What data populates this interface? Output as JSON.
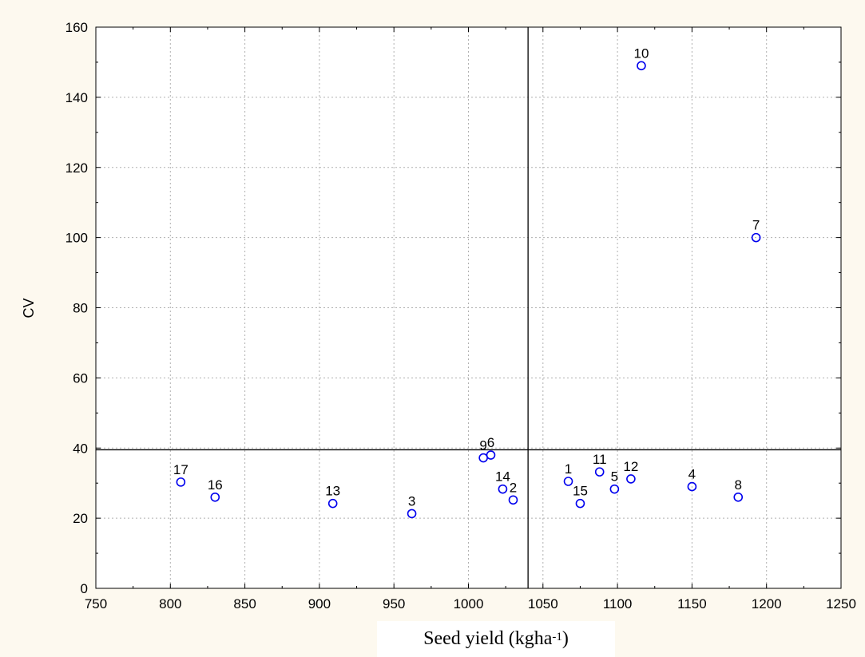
{
  "colors": {
    "figure_background": "#fdf9ef",
    "plot_background": "#ffffff",
    "marker": "#0000ee",
    "grid": "#b0b0b0",
    "reference_lines": "#000000"
  },
  "chart_data": {
    "type": "scatter",
    "title": "",
    "xlabel": {
      "main": "Seed yield (kgha",
      "superscript": "-1",
      "close": ")"
    },
    "ylabel": "CV",
    "xlim": [
      750,
      1250
    ],
    "ylim": [
      0,
      160
    ],
    "x_ticks": [
      750,
      800,
      850,
      900,
      950,
      1000,
      1050,
      1100,
      1150,
      1200,
      1250
    ],
    "y_ticks": [
      0,
      20,
      40,
      60,
      80,
      100,
      120,
      140,
      160
    ],
    "grid": true,
    "marker": "open-circle",
    "reference_lines": {
      "vertical_x": 1040,
      "horizontal_y": 39.5
    },
    "points": [
      {
        "label": "1",
        "x": 1067,
        "y": 30.5
      },
      {
        "label": "2",
        "x": 1030,
        "y": 25.2
      },
      {
        "label": "3",
        "x": 962,
        "y": 21.3
      },
      {
        "label": "4",
        "x": 1150,
        "y": 29.0
      },
      {
        "label": "5",
        "x": 1098,
        "y": 28.3
      },
      {
        "label": "6",
        "x": 1015,
        "y": 38.0
      },
      {
        "label": "7",
        "x": 1193,
        "y": 100.0
      },
      {
        "label": "8",
        "x": 1181,
        "y": 26.0
      },
      {
        "label": "9",
        "x": 1010,
        "y": 37.2
      },
      {
        "label": "10",
        "x": 1116,
        "y": 149.0
      },
      {
        "label": "11",
        "x": 1088,
        "y": 33.2
      },
      {
        "label": "12",
        "x": 1109,
        "y": 31.2
      },
      {
        "label": "13",
        "x": 909,
        "y": 24.2
      },
      {
        "label": "14",
        "x": 1023,
        "y": 28.3
      },
      {
        "label": "15",
        "x": 1075,
        "y": 24.2
      },
      {
        "label": "16",
        "x": 830,
        "y": 26.0
      },
      {
        "label": "17",
        "x": 807,
        "y": 30.3
      }
    ]
  }
}
